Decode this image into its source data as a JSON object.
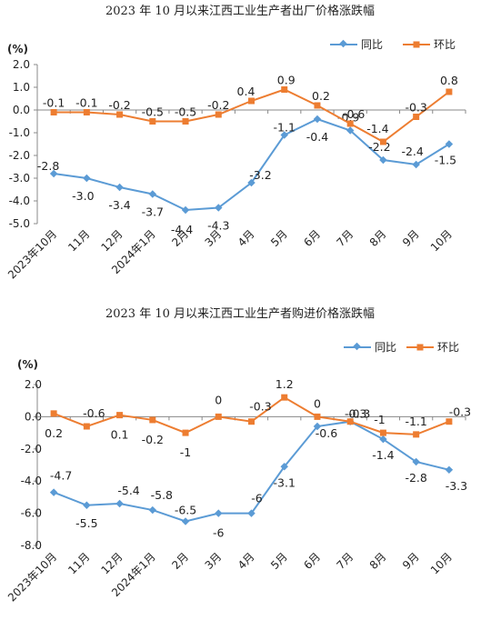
{
  "chart_data": [
    {
      "type": "line",
      "title": "2023 年 10 月以来江西工业生产者出厂价格涨跌幅",
      "unit": "(%)",
      "categories": [
        "2023年10月",
        "11月",
        "12月",
        "2024年1月",
        "2月",
        "3月",
        "4月",
        "5月",
        "6月",
        "7月",
        "8月",
        "9月",
        "10月"
      ],
      "ylim": [
        -5.0,
        2.0
      ],
      "yticks": [
        "2.0",
        "1.0",
        "0.0",
        "-1.0",
        "-2.0",
        "-3.0",
        "-4.0",
        "-5.0"
      ],
      "legend_position": "top-right",
      "series": [
        {
          "name": "同比",
          "color": "#5b9bd5",
          "marker": "diamond",
          "values": [
            -2.8,
            -3.0,
            -3.4,
            -3.7,
            -4.4,
            -4.3,
            -3.2,
            -1.1,
            -0.4,
            -0.9,
            -2.2,
            -2.4,
            -1.5
          ],
          "labels": [
            "-2.8",
            "-3.0",
            "-3.4",
            "-3.7",
            "-4.4",
            "-4.3",
            "-3.2",
            "-1.1",
            "-0.4",
            "-0.9",
            "-2.2",
            "-2.4",
            "-1.5"
          ]
        },
        {
          "name": "环比",
          "color": "#ed7d31",
          "marker": "square",
          "values": [
            -0.1,
            -0.1,
            -0.2,
            -0.5,
            -0.5,
            -0.2,
            0.4,
            0.9,
            0.2,
            -0.6,
            -1.4,
            -0.3,
            0.8
          ],
          "labels": [
            "-0.1",
            "-0.1",
            "-0.2",
            "-0.5",
            "-0.5",
            "-0.2",
            "0.4",
            "0.9",
            "0.2",
            "-0.6",
            "-1.4",
            "-0.3",
            "0.8"
          ]
        }
      ]
    },
    {
      "type": "line",
      "title": "2023 年 10 月以来江西工业生产者购进价格涨跌幅",
      "unit": "(%)",
      "categories": [
        "2023年10月",
        "11月",
        "12月",
        "2024年1月",
        "2月",
        "3月",
        "4月",
        "5月",
        "6月",
        "7月",
        "8月",
        "9月",
        "10月"
      ],
      "ylim": [
        -8.0,
        2.0
      ],
      "yticks": [
        "2.0",
        "0.0",
        "-2.0",
        "-4.0",
        "-6.0",
        "-8.0"
      ],
      "legend_position": "top-right",
      "series": [
        {
          "name": "同比",
          "color": "#5b9bd5",
          "marker": "diamond",
          "values": [
            -4.7,
            -5.5,
            -5.4,
            -5.8,
            -6.5,
            -6.0,
            -6.0,
            -3.1,
            -0.6,
            -0.3,
            -1.4,
            -2.8,
            -3.3
          ],
          "labels": [
            "-4.7",
            "-5.5",
            "-5.4",
            "-5.8",
            "-6.5",
            "-6",
            "-6",
            "-3.1",
            "-0.6",
            "-0.3",
            "-1.4",
            "-2.8",
            "-3.3"
          ]
        },
        {
          "name": "环比",
          "color": "#ed7d31",
          "marker": "square",
          "values": [
            0.2,
            -0.6,
            0.1,
            -0.2,
            -1.0,
            0.0,
            -0.3,
            1.2,
            0.0,
            -0.3,
            -1.0,
            -1.1,
            -0.3
          ],
          "labels": [
            "0.2",
            "-0.6",
            "0.1",
            "-0.2",
            "-1",
            "0",
            "-0.3",
            "1.2",
            "0",
            "-0.3",
            "-1",
            "-1.1",
            "-0.3"
          ]
        }
      ]
    }
  ]
}
